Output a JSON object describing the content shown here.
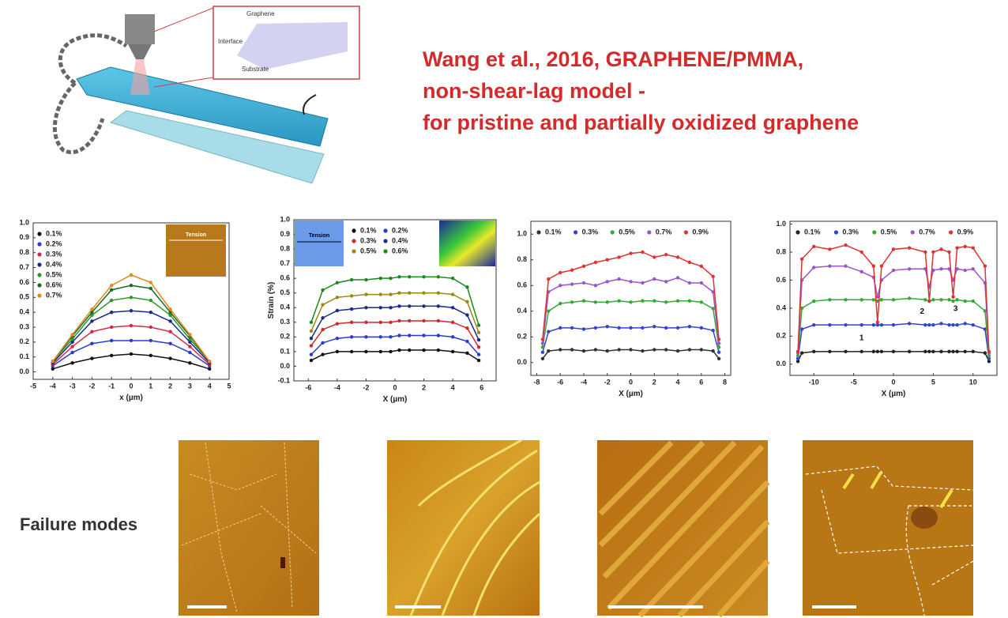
{
  "title_lines": [
    "Wang et al., 2016, GRAPHENE/PMMA,",
    "non-shear-lag model -",
    "for pristine and partially oxidized graphene"
  ],
  "schematic": {
    "labels": [
      "Graphene",
      "Interface",
      "Substrate"
    ]
  },
  "failure_label": "Failure modes",
  "chart_data": [
    {
      "type": "line",
      "xlabel": "x (µm)",
      "inset_label": "Tension",
      "legend_columns": 1,
      "xlim": [
        -5,
        5
      ],
      "xticks": [
        -5,
        -4,
        -3,
        -2,
        -1,
        0,
        1,
        2,
        3,
        4,
        5
      ],
      "ylim": [
        -0.05,
        1.0
      ],
      "yticks": [
        {
          "value": 0,
          "label": "0.0"
        },
        0.1,
        0.2,
        0.3,
        0.4,
        0.5,
        0.6,
        0.7,
        0.8,
        0.9,
        {
          "value": 1,
          "label": "1.0"
        }
      ],
      "x": [
        -4,
        -3,
        -2,
        -1,
        0,
        1,
        2,
        3,
        4
      ],
      "series": [
        {
          "name": "0.1%",
          "color": "#111111",
          "values": [
            0.02,
            0.06,
            0.09,
            0.11,
            0.12,
            0.11,
            0.09,
            0.06,
            0.02
          ]
        },
        {
          "name": "0.2%",
          "color": "#2a3bd0",
          "values": [
            0.04,
            0.13,
            0.19,
            0.21,
            0.21,
            0.21,
            0.19,
            0.13,
            0.04
          ]
        },
        {
          "name": "0.3%",
          "color": "#d02a4a",
          "values": [
            0.05,
            0.17,
            0.27,
            0.3,
            0.31,
            0.3,
            0.27,
            0.17,
            0.05
          ]
        },
        {
          "name": "0.4%",
          "color": "#1a2a8a",
          "values": [
            0.06,
            0.2,
            0.34,
            0.4,
            0.41,
            0.4,
            0.34,
            0.2,
            0.06
          ]
        },
        {
          "name": "0.5%",
          "color": "#2a9a2a",
          "values": [
            0.07,
            0.22,
            0.38,
            0.48,
            0.5,
            0.48,
            0.38,
            0.22,
            0.07
          ]
        },
        {
          "name": "0.6%",
          "color": "#1a6a2a",
          "values": [
            0.07,
            0.24,
            0.4,
            0.55,
            0.58,
            0.56,
            0.4,
            0.24,
            0.07
          ]
        },
        {
          "name": "0.7%",
          "color": "#e08a1a",
          "values": [
            0.07,
            0.25,
            0.42,
            0.58,
            0.65,
            0.6,
            0.42,
            0.25,
            0.07
          ]
        }
      ]
    },
    {
      "type": "line",
      "xlabel": "X (µm)",
      "ylabel": "Strain (%)",
      "inset_label": "Tension",
      "legend_columns": 2,
      "xlim": [
        -7,
        7
      ],
      "xticks": [
        -6,
        -4,
        -2,
        0,
        2,
        4,
        6
      ],
      "ylim": [
        -0.1,
        1.0
      ],
      "yticks": [
        -0.1,
        {
          "value": 0,
          "label": "0.0"
        },
        0.1,
        0.2,
        0.3,
        0.4,
        0.5,
        0.6,
        0.7,
        0.8,
        0.9,
        {
          "value": 1,
          "label": "1.0"
        }
      ],
      "x": [
        -5.8,
        -5,
        -4,
        -3,
        -2,
        -1,
        -0.3,
        0.3,
        1,
        2,
        3,
        4,
        5,
        5.8
      ],
      "series": [
        {
          "name": "0.1%",
          "color": "#111111",
          "values": [
            0.04,
            0.08,
            0.1,
            0.1,
            0.1,
            0.1,
            0.1,
            0.11,
            0.11,
            0.11,
            0.11,
            0.1,
            0.09,
            0.04
          ]
        },
        {
          "name": "0.2%",
          "color": "#2a3bd0",
          "values": [
            0.08,
            0.16,
            0.19,
            0.2,
            0.2,
            0.2,
            0.2,
            0.21,
            0.21,
            0.21,
            0.21,
            0.2,
            0.17,
            0.08
          ]
        },
        {
          "name": "0.3%",
          "color": "#d02a2a",
          "values": [
            0.14,
            0.25,
            0.29,
            0.3,
            0.3,
            0.3,
            0.3,
            0.31,
            0.31,
            0.31,
            0.31,
            0.3,
            0.26,
            0.13
          ]
        },
        {
          "name": "0.4%",
          "color": "#1a2a8a",
          "values": [
            0.19,
            0.33,
            0.38,
            0.39,
            0.4,
            0.4,
            0.4,
            0.41,
            0.41,
            0.41,
            0.41,
            0.4,
            0.35,
            0.18
          ]
        },
        {
          "name": "0.5%",
          "color": "#9a8a10",
          "values": [
            0.24,
            0.42,
            0.47,
            0.48,
            0.49,
            0.49,
            0.49,
            0.5,
            0.5,
            0.5,
            0.5,
            0.49,
            0.44,
            0.23
          ]
        },
        {
          "name": "0.6%",
          "color": "#1a8a1a",
          "values": [
            0.3,
            0.52,
            0.57,
            0.59,
            0.59,
            0.6,
            0.6,
            0.61,
            0.61,
            0.61,
            0.61,
            0.6,
            0.54,
            0.28
          ]
        }
      ]
    },
    {
      "type": "line",
      "xlabel": "X (µm)",
      "legend_columns": 5,
      "xlim": [
        -8.5,
        8.5
      ],
      "xticks": [
        -8,
        -6,
        -4,
        -2,
        0,
        2,
        4,
        6,
        8
      ],
      "ylim": [
        -0.1,
        1.1
      ],
      "yticks": [
        {
          "value": 0,
          "label": "0.0"
        },
        0.2,
        0.4,
        0.6,
        0.8,
        {
          "value": 1,
          "label": "1.0"
        }
      ],
      "x": [
        -7.5,
        -7,
        -6,
        -5,
        -4,
        -3,
        -2,
        -1,
        0,
        1,
        2,
        3,
        4,
        5,
        6,
        7,
        7.5
      ],
      "series": [
        {
          "name": "0.1%",
          "color": "#333333",
          "values": [
            0.03,
            0.09,
            0.1,
            0.1,
            0.09,
            0.1,
            0.09,
            0.1,
            0.1,
            0.09,
            0.1,
            0.1,
            0.09,
            0.1,
            0.1,
            0.09,
            0.03
          ]
        },
        {
          "name": "0.3%",
          "color": "#3344cc",
          "values": [
            0.08,
            0.24,
            0.27,
            0.27,
            0.26,
            0.27,
            0.28,
            0.27,
            0.27,
            0.27,
            0.28,
            0.27,
            0.27,
            0.28,
            0.27,
            0.25,
            0.08
          ]
        },
        {
          "name": "0.5%",
          "color": "#33aa33",
          "values": [
            0.12,
            0.4,
            0.46,
            0.47,
            0.48,
            0.47,
            0.47,
            0.48,
            0.47,
            0.48,
            0.48,
            0.47,
            0.48,
            0.48,
            0.47,
            0.42,
            0.12
          ]
        },
        {
          "name": "0.7%",
          "color": "#9955cc",
          "values": [
            0.15,
            0.55,
            0.6,
            0.61,
            0.62,
            0.6,
            0.63,
            0.65,
            0.63,
            0.62,
            0.65,
            0.63,
            0.66,
            0.62,
            0.62,
            0.55,
            0.15
          ]
        },
        {
          "name": "0.9%",
          "color": "#dd3333",
          "values": [
            0.18,
            0.65,
            0.7,
            0.72,
            0.75,
            0.78,
            0.8,
            0.82,
            0.85,
            0.86,
            0.82,
            0.84,
            0.82,
            0.78,
            0.75,
            0.67,
            0.18
          ]
        }
      ]
    },
    {
      "type": "line",
      "xlabel": "X (µm)",
      "legend_columns": 5,
      "annotations": [
        "1",
        "2",
        "3"
      ],
      "xlim": [
        -13,
        13
      ],
      "xticks": [
        -10,
        -5,
        0,
        5,
        10
      ],
      "ylim": [
        -0.08,
        1.02
      ],
      "yticks": [
        {
          "value": 0,
          "label": "0.0"
        },
        0.2,
        0.4,
        0.6,
        0.8,
        {
          "value": 1,
          "label": "1.0"
        }
      ],
      "x": [
        -12,
        -11.5,
        -10,
        -8,
        -6,
        -4,
        -2.5,
        -2,
        -1.5,
        0,
        2,
        4,
        4.5,
        5,
        6,
        7,
        7.5,
        8,
        9,
        10,
        11.5,
        12
      ],
      "series": [
        {
          "name": "0.1%",
          "color": "#222222",
          "values": [
            0.02,
            0.08,
            0.09,
            0.09,
            0.09,
            0.09,
            0.09,
            0.09,
            0.09,
            0.09,
            0.09,
            0.09,
            0.09,
            0.09,
            0.09,
            0.09,
            0.09,
            0.09,
            0.09,
            0.09,
            0.08,
            0.02
          ]
        },
        {
          "name": "0.3%",
          "color": "#3344cc",
          "values": [
            0.04,
            0.25,
            0.28,
            0.28,
            0.28,
            0.28,
            0.28,
            0.28,
            0.28,
            0.28,
            0.29,
            0.28,
            0.28,
            0.28,
            0.29,
            0.28,
            0.28,
            0.28,
            0.29,
            0.28,
            0.25,
            0.04
          ]
        },
        {
          "name": "0.5%",
          "color": "#33aa33",
          "values": [
            0.06,
            0.4,
            0.45,
            0.46,
            0.46,
            0.46,
            0.46,
            0.45,
            0.46,
            0.46,
            0.47,
            0.46,
            0.45,
            0.46,
            0.46,
            0.46,
            0.45,
            0.46,
            0.45,
            0.45,
            0.38,
            0.06
          ]
        },
        {
          "name": "0.7%",
          "color": "#9955cc",
          "values": [
            0.08,
            0.6,
            0.69,
            0.7,
            0.7,
            0.66,
            0.62,
            0.48,
            0.6,
            0.67,
            0.68,
            0.68,
            0.55,
            0.67,
            0.68,
            0.68,
            0.6,
            0.68,
            0.67,
            0.68,
            0.58,
            0.08
          ]
        },
        {
          "name": "0.9%",
          "color": "#dd3333",
          "values": [
            0.09,
            0.75,
            0.84,
            0.82,
            0.85,
            0.8,
            0.7,
            0.3,
            0.7,
            0.82,
            0.83,
            0.8,
            0.45,
            0.8,
            0.82,
            0.8,
            0.48,
            0.83,
            0.84,
            0.83,
            0.7,
            0.09
          ]
        }
      ]
    }
  ]
}
